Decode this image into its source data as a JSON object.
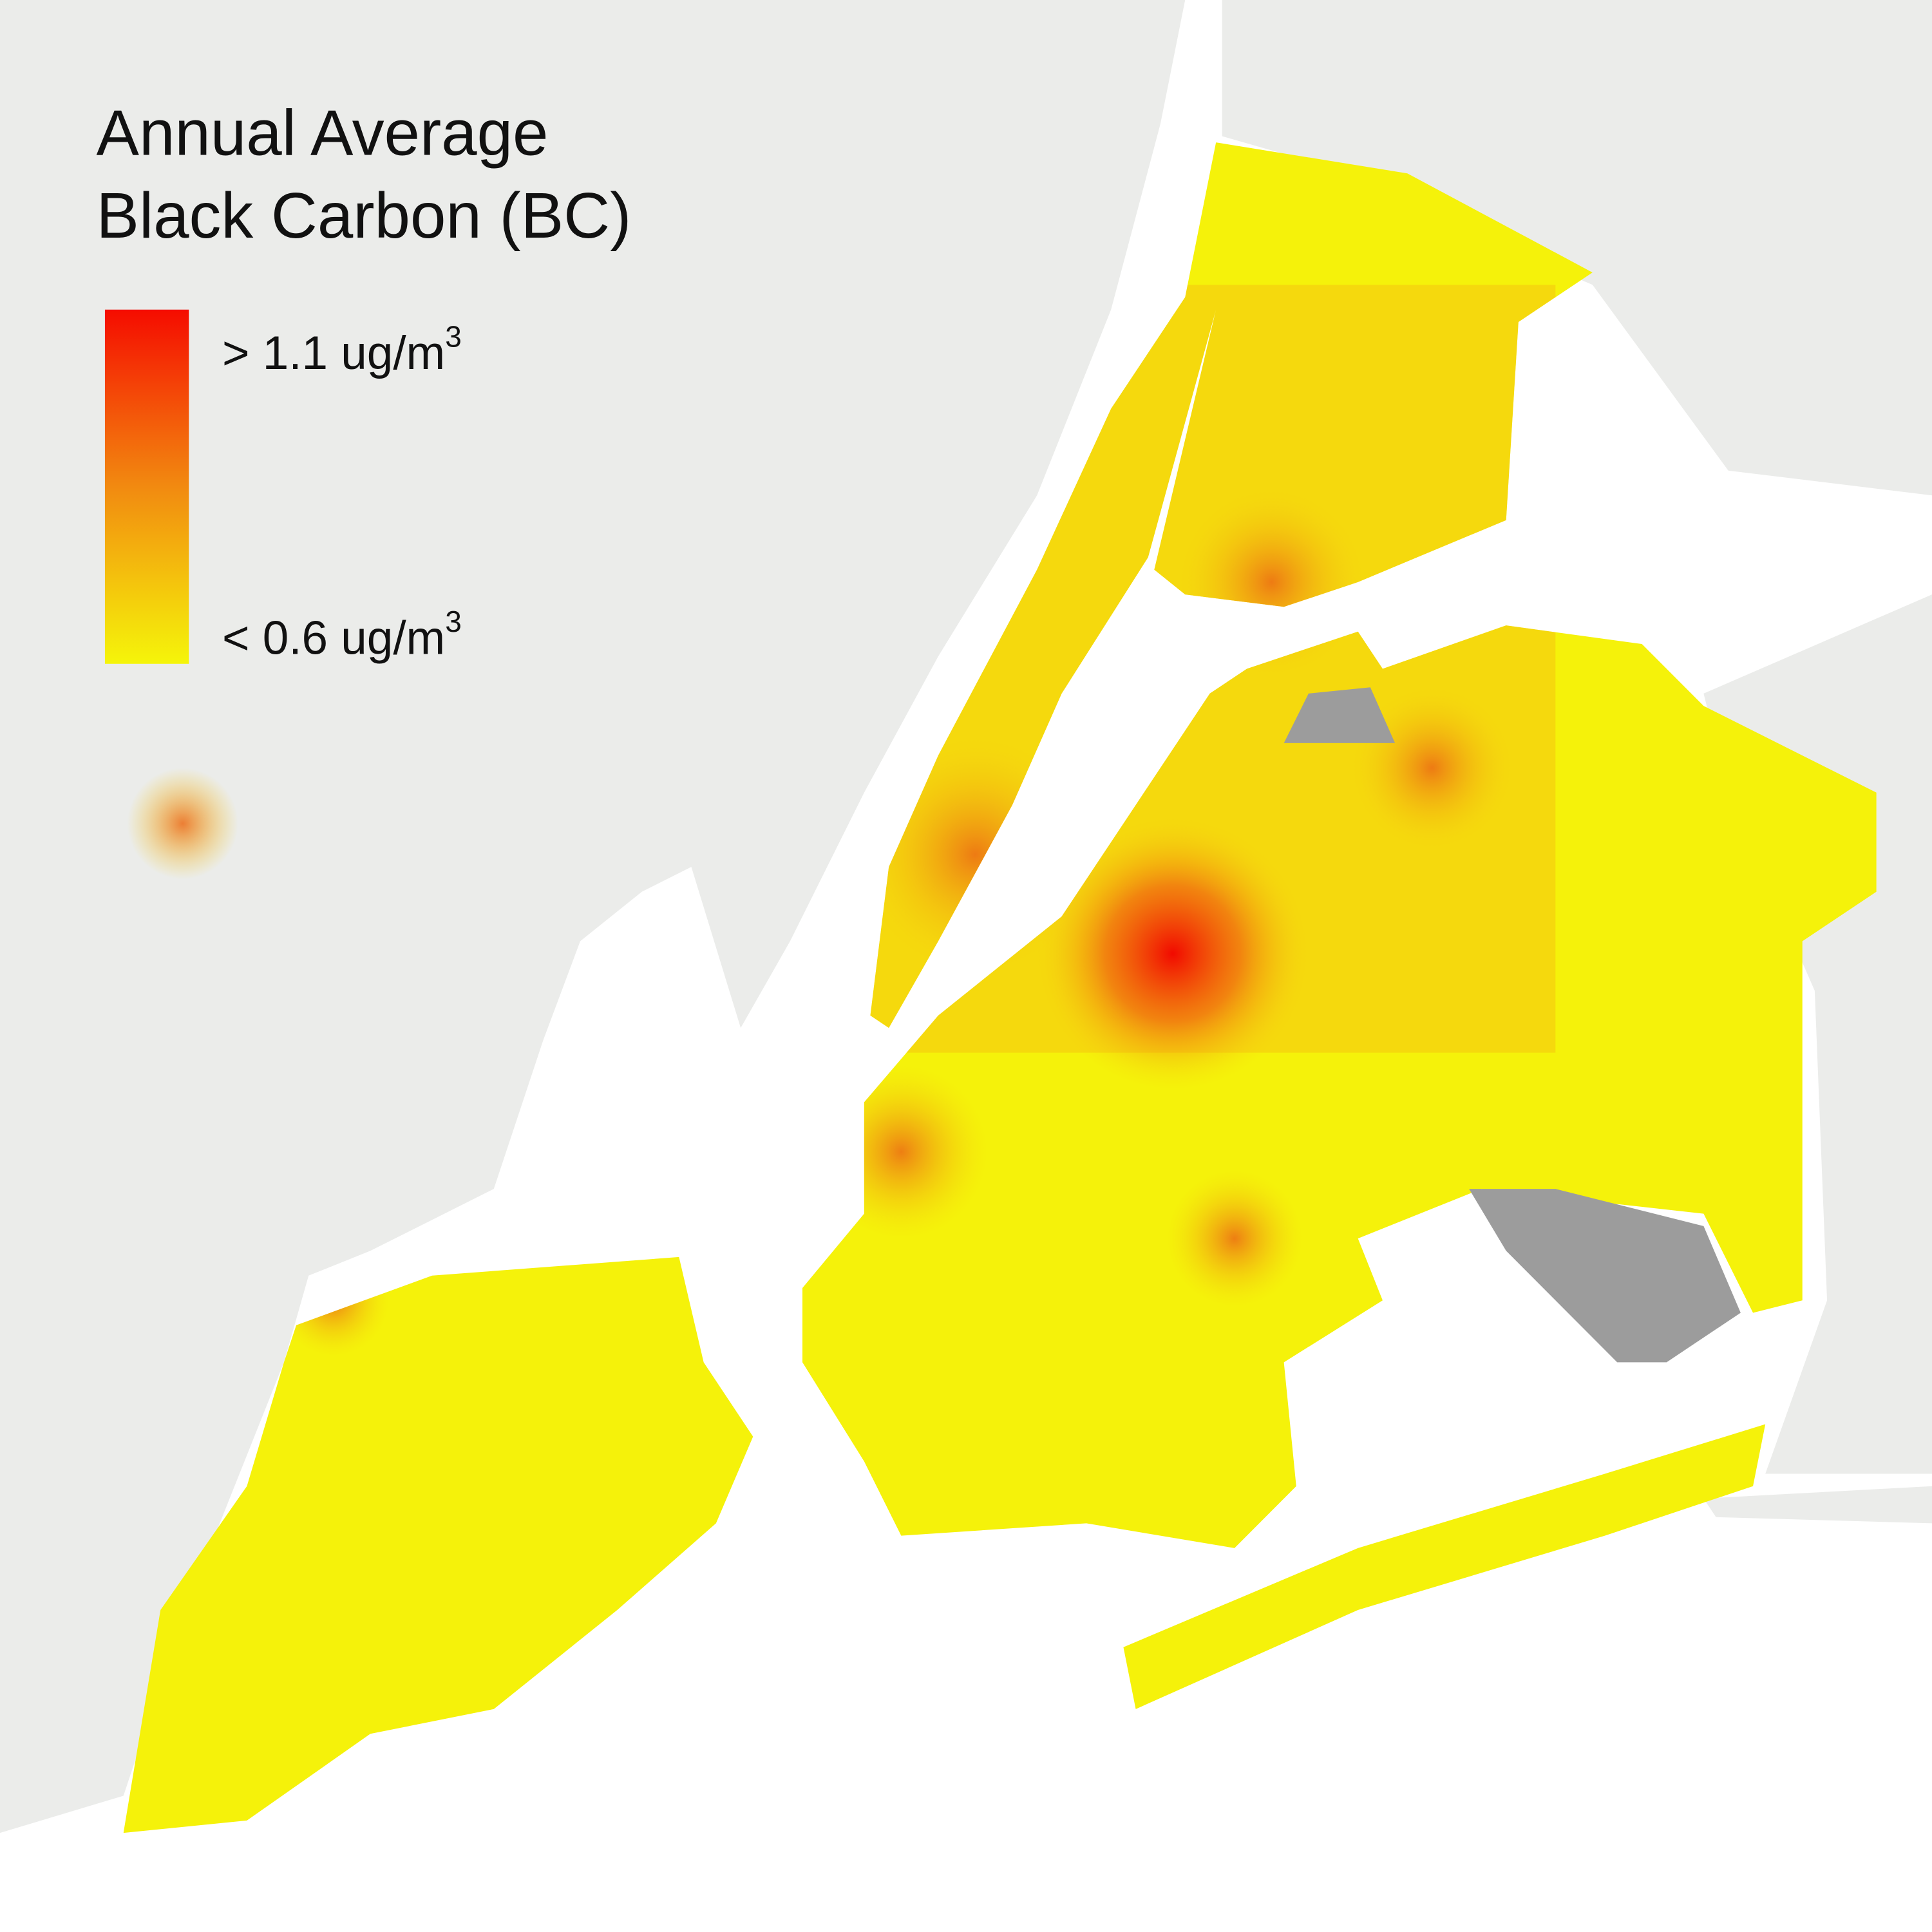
{
  "title": [
    "Annual Average",
    "Black Carbon (BC)"
  ],
  "legend": {
    "high": {
      "text": "> 1.1 ug/m",
      "superscript": "3"
    },
    "low": {
      "text": "< 0.6 ug/m",
      "superscript": "3"
    }
  }
}
